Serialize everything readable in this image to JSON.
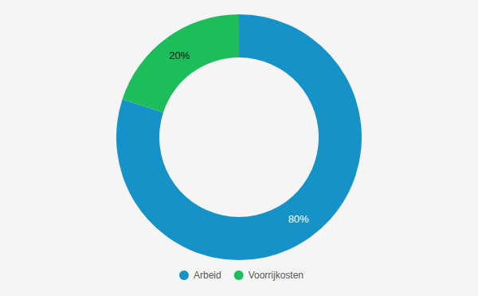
{
  "chart_data": {
    "type": "pie",
    "categories": [
      "Arbeid",
      "Voorrijkosten"
    ],
    "values": [
      80,
      20
    ],
    "value_labels": [
      "80%",
      "20%"
    ],
    "colors": [
      "#1592c8",
      "#1dbd5c"
    ],
    "data_labels": true,
    "legend": "bottom"
  }
}
